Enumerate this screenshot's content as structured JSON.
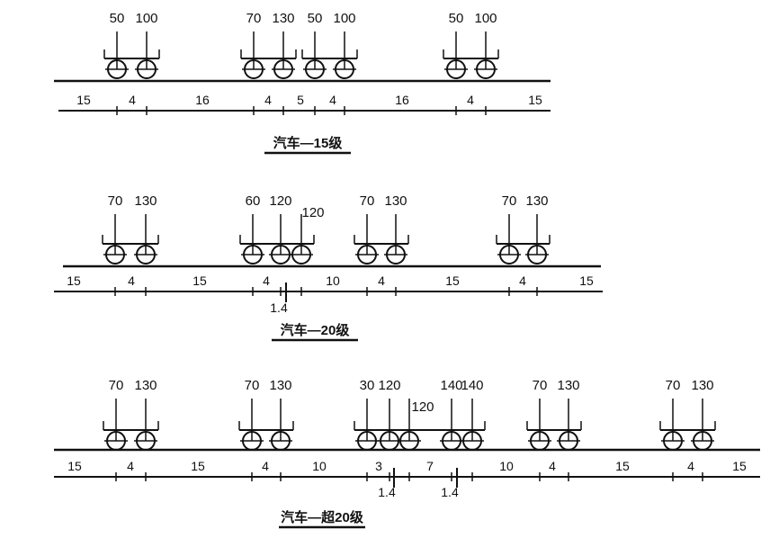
{
  "rows": [
    {
      "title": "汽车—15级",
      "vehicles": [
        {
          "loads": [
            "50",
            "100"
          ]
        },
        {
          "loads": [
            "70",
            "130"
          ]
        },
        {
          "loads": [
            "50",
            "100"
          ]
        },
        {
          "loads": [
            "50",
            "100"
          ]
        }
      ],
      "dimensions": [
        "15",
        "4",
        "16",
        "4",
        "5",
        "4",
        "16",
        "4",
        "15"
      ],
      "sub_dimensions": []
    },
    {
      "title": "汽车—20级",
      "vehicles": [
        {
          "loads": [
            "70",
            "130"
          ]
        },
        {
          "loads": [
            "60",
            "120",
            "120"
          ]
        },
        {
          "loads": [
            "70",
            "130"
          ]
        },
        {
          "loads": [
            "70",
            "130"
          ]
        }
      ],
      "dimensions": [
        "15",
        "4",
        "15",
        "4",
        "10",
        "4",
        "15",
        "4",
        "15"
      ],
      "sub_dimensions": [
        "1.4"
      ]
    },
    {
      "title": "汽车—超20级",
      "vehicles": [
        {
          "loads": [
            "70",
            "130"
          ]
        },
        {
          "loads": [
            "70",
            "130"
          ]
        },
        {
          "loads": [
            "30",
            "120",
            "120",
            "140",
            "140"
          ]
        },
        {
          "loads": [
            "70",
            "130"
          ]
        },
        {
          "loads": [
            "70",
            "130"
          ]
        }
      ],
      "dimensions": [
        "15",
        "4",
        "15",
        "4",
        "10",
        "3",
        "7",
        "10",
        "4",
        "15",
        "4",
        "15"
      ],
      "sub_dimensions": [
        "1.4",
        "1.4"
      ]
    }
  ]
}
